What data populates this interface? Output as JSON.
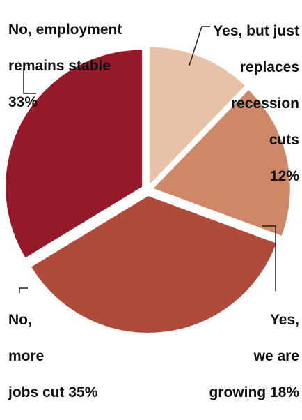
{
  "chart_data": {
    "type": "pie",
    "title": "",
    "slices": [
      {
        "label_lines": [
          "Yes, but just",
          "replaces",
          "recession",
          "cuts",
          "12%"
        ],
        "value": 12,
        "color": "#e7c2a6"
      },
      {
        "label_lines": [
          "Yes,",
          "we are",
          "growing 18%"
        ],
        "value": 18,
        "color": "#cf8867"
      },
      {
        "label_lines": [
          "No,",
          "more",
          "jobs cut 35%"
        ],
        "value": 35,
        "color": "#b04a3a"
      },
      {
        "label_lines": [
          "No, employment",
          "remains stable",
          "33%"
        ],
        "value": 33,
        "color": "#941a2b"
      }
    ]
  }
}
